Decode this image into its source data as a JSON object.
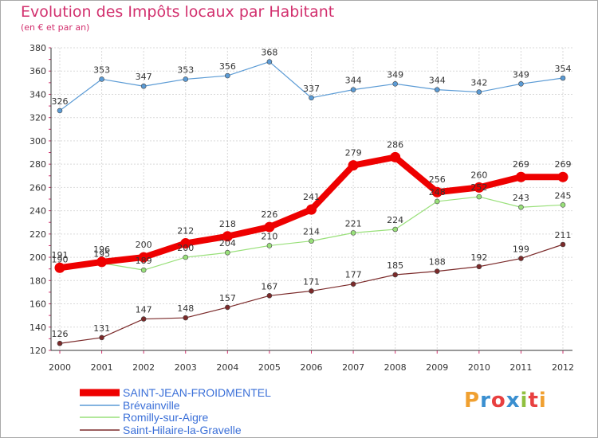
{
  "chart_data": {
    "type": "line",
    "title": "Evolution des Impôts locaux par Habitant",
    "subtitle": "(en € et par an)",
    "x": [
      "2000",
      "2001",
      "2002",
      "2003",
      "2004",
      "2005",
      "2006",
      "2007",
      "2008",
      "2009",
      "2010",
      "2011",
      "2012"
    ],
    "ylim": [
      120,
      380
    ],
    "yticks": [
      120,
      140,
      160,
      180,
      200,
      220,
      240,
      260,
      280,
      300,
      320,
      340,
      360,
      380
    ],
    "grid": true,
    "series": [
      {
        "name": "Brévainville",
        "color": "#5b9bd5",
        "values": [
          326,
          353,
          347,
          353,
          356,
          368,
          337,
          344,
          349,
          344,
          342,
          349,
          354
        ]
      },
      {
        "name": "Romilly-sur-Aigre",
        "color": "#99e07a",
        "values": [
          190,
          195,
          189,
          200,
          204,
          210,
          214,
          221,
          224,
          248,
          252,
          243,
          245
        ]
      },
      {
        "name": "Saint-Hilaire-la-Gravelle",
        "color": "#7b2a2a",
        "values": [
          126,
          131,
          147,
          148,
          157,
          167,
          171,
          177,
          185,
          188,
          192,
          199,
          211
        ]
      },
      {
        "name": "SAINT-JEAN-FROIDMENTEL",
        "color": "#ee0000",
        "values": [
          191,
          196,
          200,
          212,
          218,
          226,
          241,
          279,
          286,
          256,
          260,
          269,
          269
        ]
      }
    ],
    "legend_order": [
      "SAINT-JEAN-FROIDMENTEL",
      "Brévainville",
      "Romilly-sur-Aigre",
      "Saint-Hilaire-la-Gravelle"
    ]
  },
  "logo": {
    "letters": [
      "P",
      "r",
      "o",
      "x",
      "i",
      "t",
      "i"
    ],
    "colors": [
      "#f0a030",
      "#3a8fd0",
      "#e84040",
      "#3a8fd0",
      "#90c040",
      "#e84040",
      "#f0a030"
    ]
  }
}
